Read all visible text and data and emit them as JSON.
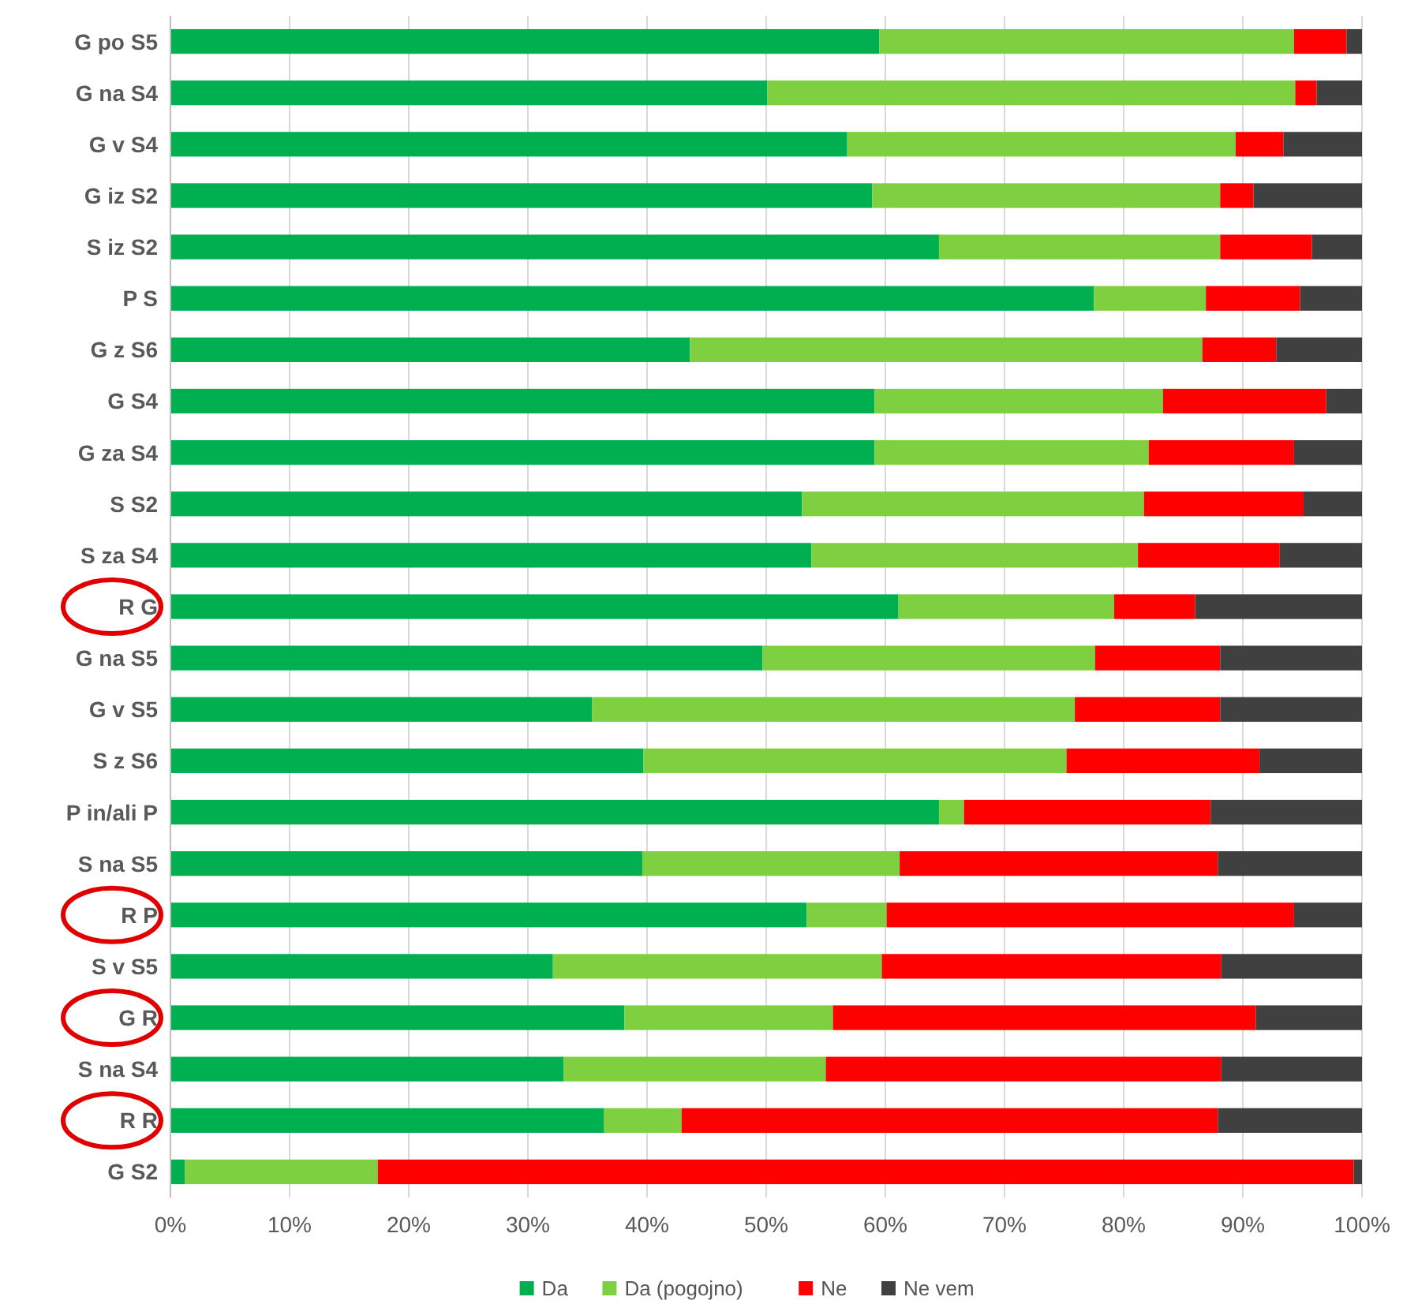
{
  "chart_data": {
    "type": "bar",
    "orientation": "horizontal",
    "stacked": true,
    "categories": [
      "G po S5",
      "G na S4",
      "G v S4",
      "G iz S2",
      "S iz S2",
      "P S",
      "G z S6",
      "G S4",
      "G za S4",
      "S S2",
      "S za S4",
      "R G",
      "G na S5",
      "G v S5",
      "S z S6",
      "P in/ali P",
      "S na S5",
      "R P",
      "S v S5",
      "G R",
      "S na S4",
      "R R",
      "G S2"
    ],
    "series": [
      {
        "name": "Da",
        "color": "#00b050",
        "values": [
          59.5,
          50.1,
          56.8,
          58.9,
          64.5,
          77.5,
          43.6,
          59.1,
          59.1,
          53.0,
          53.8,
          61.1,
          49.7,
          35.4,
          39.7,
          64.5,
          39.6,
          53.4,
          32.1,
          38.1,
          33.0,
          36.4,
          1.2
        ]
      },
      {
        "name": "Da (pogojno)",
        "color": "#7ed040",
        "values": [
          34.8,
          44.3,
          32.6,
          29.2,
          23.6,
          9.4,
          43.0,
          24.2,
          23.0,
          28.7,
          27.4,
          18.1,
          27.9,
          40.5,
          35.5,
          2.1,
          21.6,
          6.7,
          27.6,
          17.5,
          22.0,
          6.5,
          16.2
        ]
      },
      {
        "name": "Ne",
        "color": "#ff0000",
        "values": [
          4.4,
          1.8,
          4.0,
          2.8,
          7.7,
          7.9,
          6.2,
          13.7,
          12.2,
          13.4,
          11.9,
          6.8,
          10.5,
          12.2,
          16.2,
          20.7,
          26.7,
          34.2,
          28.5,
          35.5,
          33.2,
          45.0,
          81.9
        ]
      },
      {
        "name": "Ne vem",
        "color": "#404040",
        "values": [
          1.3,
          3.8,
          6.6,
          9.1,
          4.2,
          5.2,
          7.2,
          3.0,
          5.7,
          4.9,
          6.9,
          14.0,
          11.9,
          11.9,
          8.6,
          12.7,
          12.1,
          5.7,
          11.8,
          8.9,
          11.8,
          12.1,
          0.7
        ]
      }
    ],
    "xlim": [
      0,
      100
    ],
    "xticks": [
      {
        "value": 0,
        "label": "0%"
      },
      {
        "value": 10,
        "label": "10%"
      },
      {
        "value": 20,
        "label": "20%"
      },
      {
        "value": 30,
        "label": "30%"
      },
      {
        "value": 40,
        "label": "40%"
      },
      {
        "value": 50,
        "label": "50%"
      },
      {
        "value": 60,
        "label": "60%"
      },
      {
        "value": 70,
        "label": "70%"
      },
      {
        "value": 80,
        "label": "80%"
      },
      {
        "value": 90,
        "label": "90%"
      },
      {
        "value": 100,
        "label": "100%"
      }
    ],
    "grid": "x",
    "legend": "bottom"
  }
}
